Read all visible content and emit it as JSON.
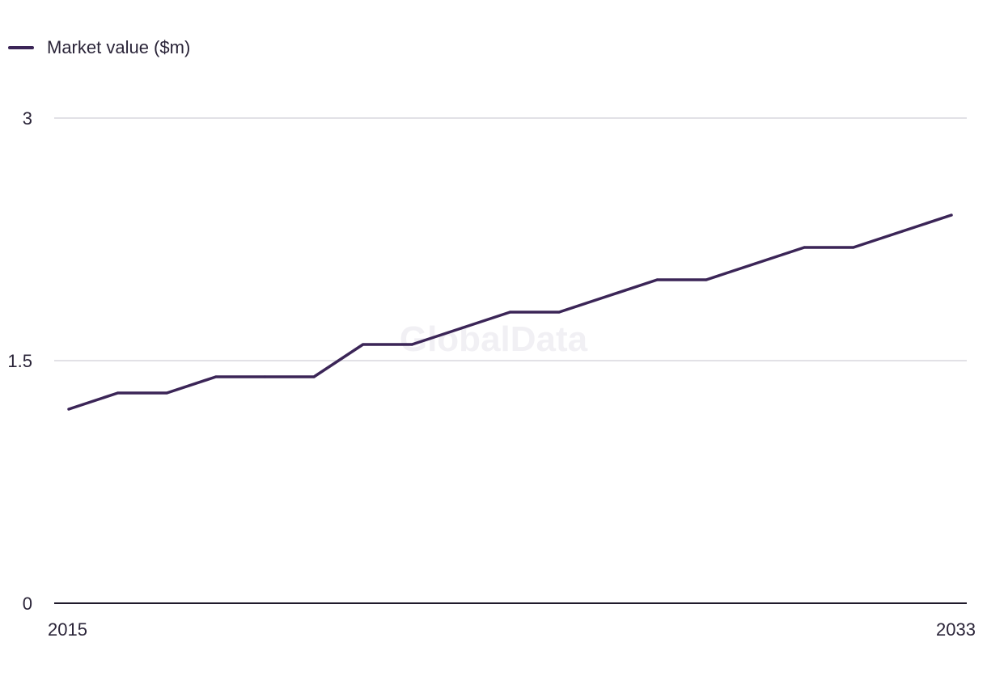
{
  "chart_data": {
    "type": "line",
    "x_start": 2015,
    "x_end": 2033,
    "x": [
      2015,
      2016,
      2017,
      2018,
      2019,
      2020,
      2021,
      2022,
      2023,
      2024,
      2025,
      2026,
      2027,
      2028,
      2029,
      2030,
      2031,
      2032,
      2033
    ],
    "series": [
      {
        "name": "Market value ($m)",
        "color": "#3b2557",
        "values": [
          1.2,
          1.3,
          1.3,
          1.4,
          1.4,
          1.4,
          1.6,
          1.6,
          1.7,
          1.8,
          1.8,
          1.9,
          2.0,
          2.0,
          2.1,
          2.2,
          2.2,
          2.3,
          2.4
        ]
      }
    ],
    "x_tick_labels": [
      "2015",
      "2033"
    ],
    "y_ticks": [
      0,
      1.5,
      3
    ],
    "y_tick_labels": [
      "0",
      "1.5",
      "3"
    ],
    "ylim": [
      0,
      3
    ],
    "grid": true,
    "legend_position": "top-left",
    "watermark": "GlobalData"
  }
}
